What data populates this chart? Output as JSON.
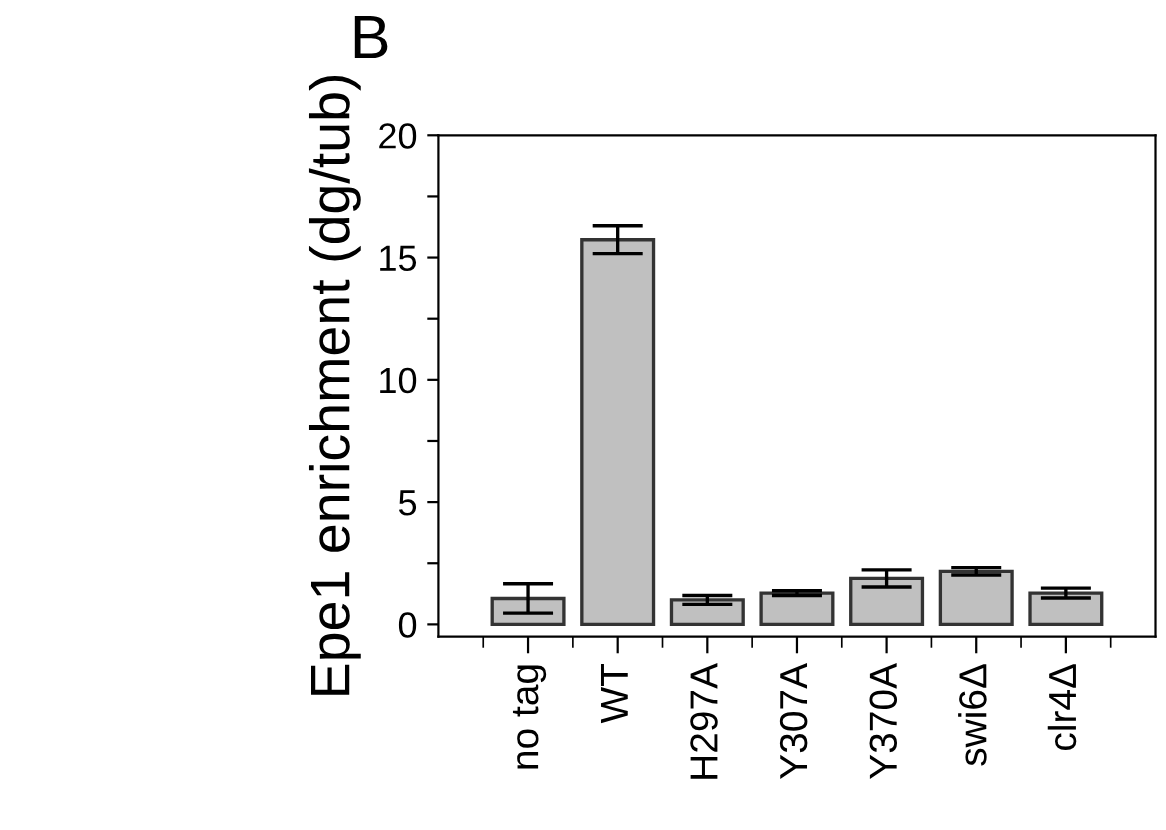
{
  "chart_data": {
    "type": "bar",
    "annotations": [
      "B"
    ],
    "ylabel": "Epe1 enrichment (dg/tub)",
    "categories": [
      "no tag",
      "WT",
      "H297A",
      "Y307A",
      "Y370A",
      "swi6Δ",
      "clr4Δ"
    ],
    "values": [
      1.06,
      15.73,
      1.0,
      1.28,
      1.88,
      2.17,
      1.28
    ],
    "errors": [
      0.6,
      0.57,
      0.18,
      0.1,
      0.35,
      0.15,
      0.2
    ],
    "color": "#c0c0c0",
    "ylim": [
      -0.5,
      20
    ],
    "yticks": [
      0,
      {
        "value": 2.5,
        "label": null
      },
      5,
      {
        "value": 7.5,
        "label": null
      },
      10,
      {
        "value": 12.5,
        "label": null
      },
      15,
      {
        "value": 17.5,
        "label": null
      },
      20
    ],
    "grid": false
  }
}
